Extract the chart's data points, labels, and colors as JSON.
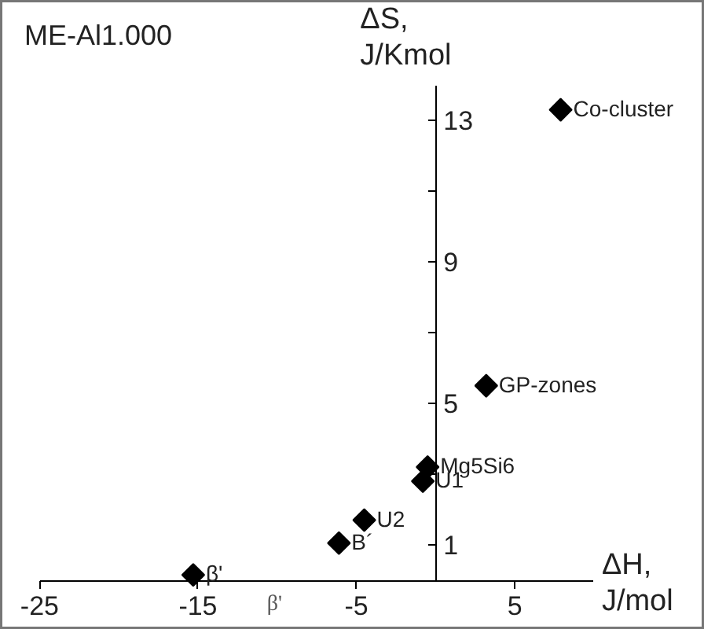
{
  "chart_data": {
    "type": "scatter",
    "title": "ME-Al1.000",
    "xlabel": "ΔH,\nJ/mol",
    "ylabel": "ΔS,\nJ/Kmol",
    "x": [
      -15.3,
      -6.1,
      -4.5,
      -0.8,
      -0.5,
      3.2,
      7.9
    ],
    "series": [
      {
        "color": "#000000",
        "values": [
          0.15,
          1.05,
          1.7,
          2.8,
          3.2,
          5.5,
          13.3
        ]
      }
    ],
    "marker": "diamond",
    "grid": false,
    "xlim": [
      -25,
      10
    ],
    "ylim": [
      0,
      14
    ],
    "xticks": [
      -25,
      -15,
      -5,
      5
    ],
    "yticks": [
      1,
      {
        "value": 3,
        "label": null
      },
      5,
      {
        "value": 7,
        "label": null
      },
      9,
      {
        "value": 11,
        "label": null
      },
      13
    ],
    "annotations": [
      {
        "text": "β'",
        "x": -15.3,
        "y": 0.15
      },
      {
        "text": "B´",
        "x": -6.1,
        "y": 1.05
      },
      {
        "text": "U2",
        "x": -4.5,
        "y": 1.7
      },
      {
        "text": "U1",
        "x": -0.8,
        "y": 2.8
      },
      {
        "text": "Mg5Si6",
        "x": -0.5,
        "y": 3.2
      },
      {
        "text": "GP-zones",
        "x": 3.2,
        "y": 5.5
      },
      {
        "text": "Co-cluster",
        "x": 7.9,
        "y": 13.3
      },
      "β'"
    ]
  }
}
